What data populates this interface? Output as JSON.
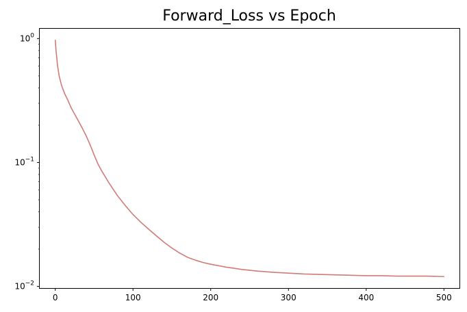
{
  "chart_data": {
    "type": "line",
    "title": "Forward_Loss vs Epoch",
    "xlabel": "",
    "ylabel": "",
    "xlim": [
      -20,
      520
    ],
    "ylim": [
      0.0097,
      1.2
    ],
    "yscale": "log",
    "grid": false,
    "legend": "none",
    "x_ticks": [
      {
        "value": 0,
        "label": "0"
      },
      {
        "value": 100,
        "label": "100"
      },
      {
        "value": 200,
        "label": "200"
      },
      {
        "value": 300,
        "label": "300"
      },
      {
        "value": 400,
        "label": "400"
      },
      {
        "value": 500,
        "label": "500"
      }
    ],
    "y_ticks": [
      {
        "value": 1,
        "base": "10",
        "exp": "0"
      },
      {
        "value": 0.1,
        "base": "10",
        "exp": "−1"
      },
      {
        "value": 0.01,
        "base": "10",
        "exp": "−2"
      }
    ],
    "series": [
      {
        "color": "#d17a78",
        "x": [
          0,
          1,
          3,
          5,
          8,
          12,
          16,
          20,
          25,
          30,
          35,
          40,
          45,
          50,
          55,
          60,
          70,
          80,
          90,
          100,
          110,
          120,
          130,
          140,
          150,
          160,
          170,
          180,
          190,
          200,
          220,
          240,
          260,
          280,
          300,
          320,
          340,
          360,
          380,
          400,
          420,
          440,
          460,
          480,
          500
        ],
        "y": [
          0.97,
          0.8,
          0.6,
          0.5,
          0.42,
          0.36,
          0.32,
          0.28,
          0.245,
          0.215,
          0.188,
          0.163,
          0.138,
          0.115,
          0.097,
          0.085,
          0.067,
          0.054,
          0.045,
          0.038,
          0.033,
          0.029,
          0.0256,
          0.0227,
          0.0204,
          0.0186,
          0.0172,
          0.0163,
          0.0156,
          0.0151,
          0.0143,
          0.0137,
          0.0133,
          0.013,
          0.0128,
          0.0126,
          0.0125,
          0.0124,
          0.0123,
          0.0122,
          0.0122,
          0.0121,
          0.0121,
          0.0121,
          0.012
        ]
      }
    ]
  }
}
